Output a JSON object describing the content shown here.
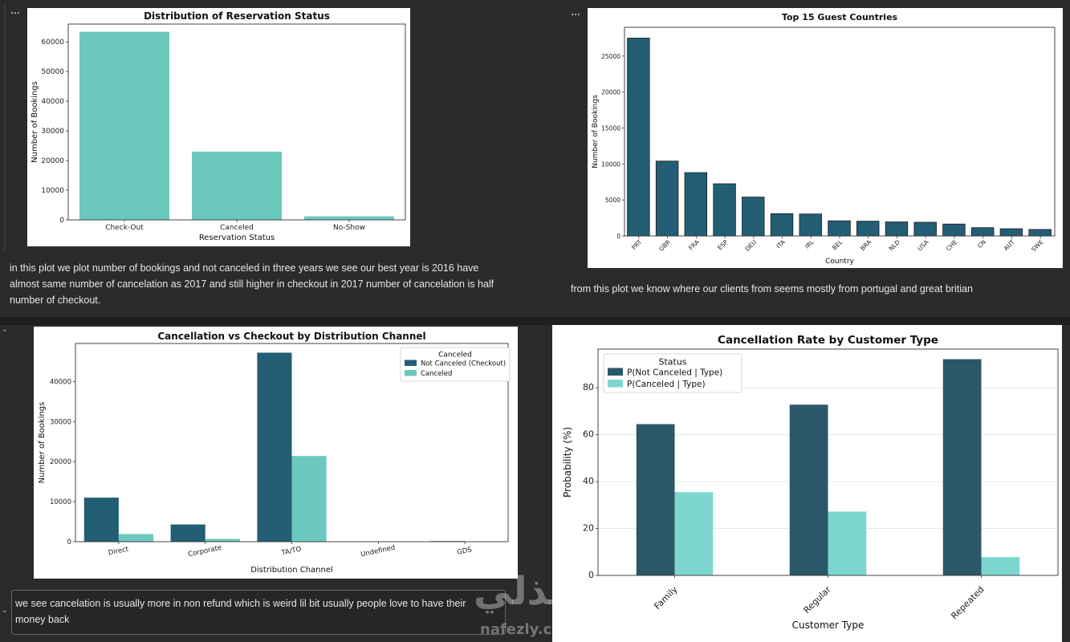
{
  "cells": {
    "menu_glyph": "…",
    "collapse_glyph": "⌄"
  },
  "notes": {
    "status_note": "in this plot we plot number of bookings and not canceled in three years we see our best year is 2016 have almost same number of cancelation as 2017 and still higher in checkout in 2017 number of cancelation is half number of checkout.",
    "countries_note": "from this plot we know where our clients from seems mostly from portugal and great britian",
    "channel_note": "we see cancelation is usually more in non refund which is weird lil bit usually people love to have their money back"
  },
  "watermark": {
    "arabic": "نفذلي",
    "latin": "nafezly.com"
  },
  "colors": {
    "teal_light": "#6cc7bd",
    "teal_dark": "#235e75",
    "cust_dark": "#2a5868",
    "cust_light": "#7dd6cd"
  },
  "chart_data": [
    {
      "type": "bar",
      "title": "Distribution of Reservation Status",
      "xlabel": "Reservation Status",
      "ylabel": "Number of Bookings",
      "categories": [
        "Check-Out",
        "Canceled",
        "No-Show"
      ],
      "values": [
        63400,
        23000,
        1200
      ],
      "ylim": [
        0,
        66000
      ],
      "yticks": [
        0,
        10000,
        20000,
        30000,
        40000,
        50000,
        60000
      ],
      "color": "#6cc7bd"
    },
    {
      "type": "bar",
      "title": "Top 15 Guest Countries",
      "xlabel": "Country",
      "ylabel": "Number of Bookings",
      "categories": [
        "PRT",
        "GBR",
        "FRA",
        "ESP",
        "DEU",
        "ITA",
        "IRL",
        "BEL",
        "BRA",
        "NLD",
        "USA",
        "CHE",
        "CN",
        "AUT",
        "SWE"
      ],
      "values": [
        27500,
        10400,
        8800,
        7250,
        5400,
        3100,
        3050,
        2100,
        2050,
        1950,
        1900,
        1650,
        1150,
        1000,
        900
      ],
      "ylim": [
        0,
        29000
      ],
      "yticks": [
        0,
        5000,
        10000,
        15000,
        20000,
        25000
      ],
      "color": "#235e75"
    },
    {
      "type": "bar",
      "title": "Cancellation vs Checkout by Distribution Channel",
      "xlabel": "Distribution Channel",
      "ylabel": "Number of Bookings",
      "categories": [
        "Direct",
        "Corporate",
        "TA/TO",
        "Undefined",
        "GDS"
      ],
      "legend_title": "Canceled",
      "series": [
        {
          "name": "Not Canceled (Checkout)",
          "values": [
            11000,
            4300,
            47200,
            0,
            150
          ],
          "color": "#235e75"
        },
        {
          "name": "Canceled",
          "values": [
            1900,
            700,
            21400,
            0,
            50
          ],
          "color": "#6cc7bd"
        }
      ],
      "ylim": [
        0,
        49500
      ],
      "yticks": [
        0,
        10000,
        20000,
        30000,
        40000
      ],
      "legend": "top-right"
    },
    {
      "type": "bar",
      "title": "Cancellation Rate by Customer Type",
      "xlabel": "Customer Type",
      "ylabel": "Probability (%)",
      "categories": [
        "Family",
        "Regular",
        "Repeated"
      ],
      "legend_title": "Status",
      "series": [
        {
          "name": "P(Not Canceled | Type)",
          "values": [
            64.5,
            72.8,
            92.2
          ],
          "color": "#2a5868"
        },
        {
          "name": "P(Canceled | Type)",
          "values": [
            35.5,
            27.2,
            7.8
          ],
          "color": "#7dd6cd"
        }
      ],
      "ylim": [
        0,
        96.5
      ],
      "yticks": [
        0,
        20,
        40,
        60,
        80
      ],
      "grid": true,
      "legend": "top-left"
    }
  ]
}
